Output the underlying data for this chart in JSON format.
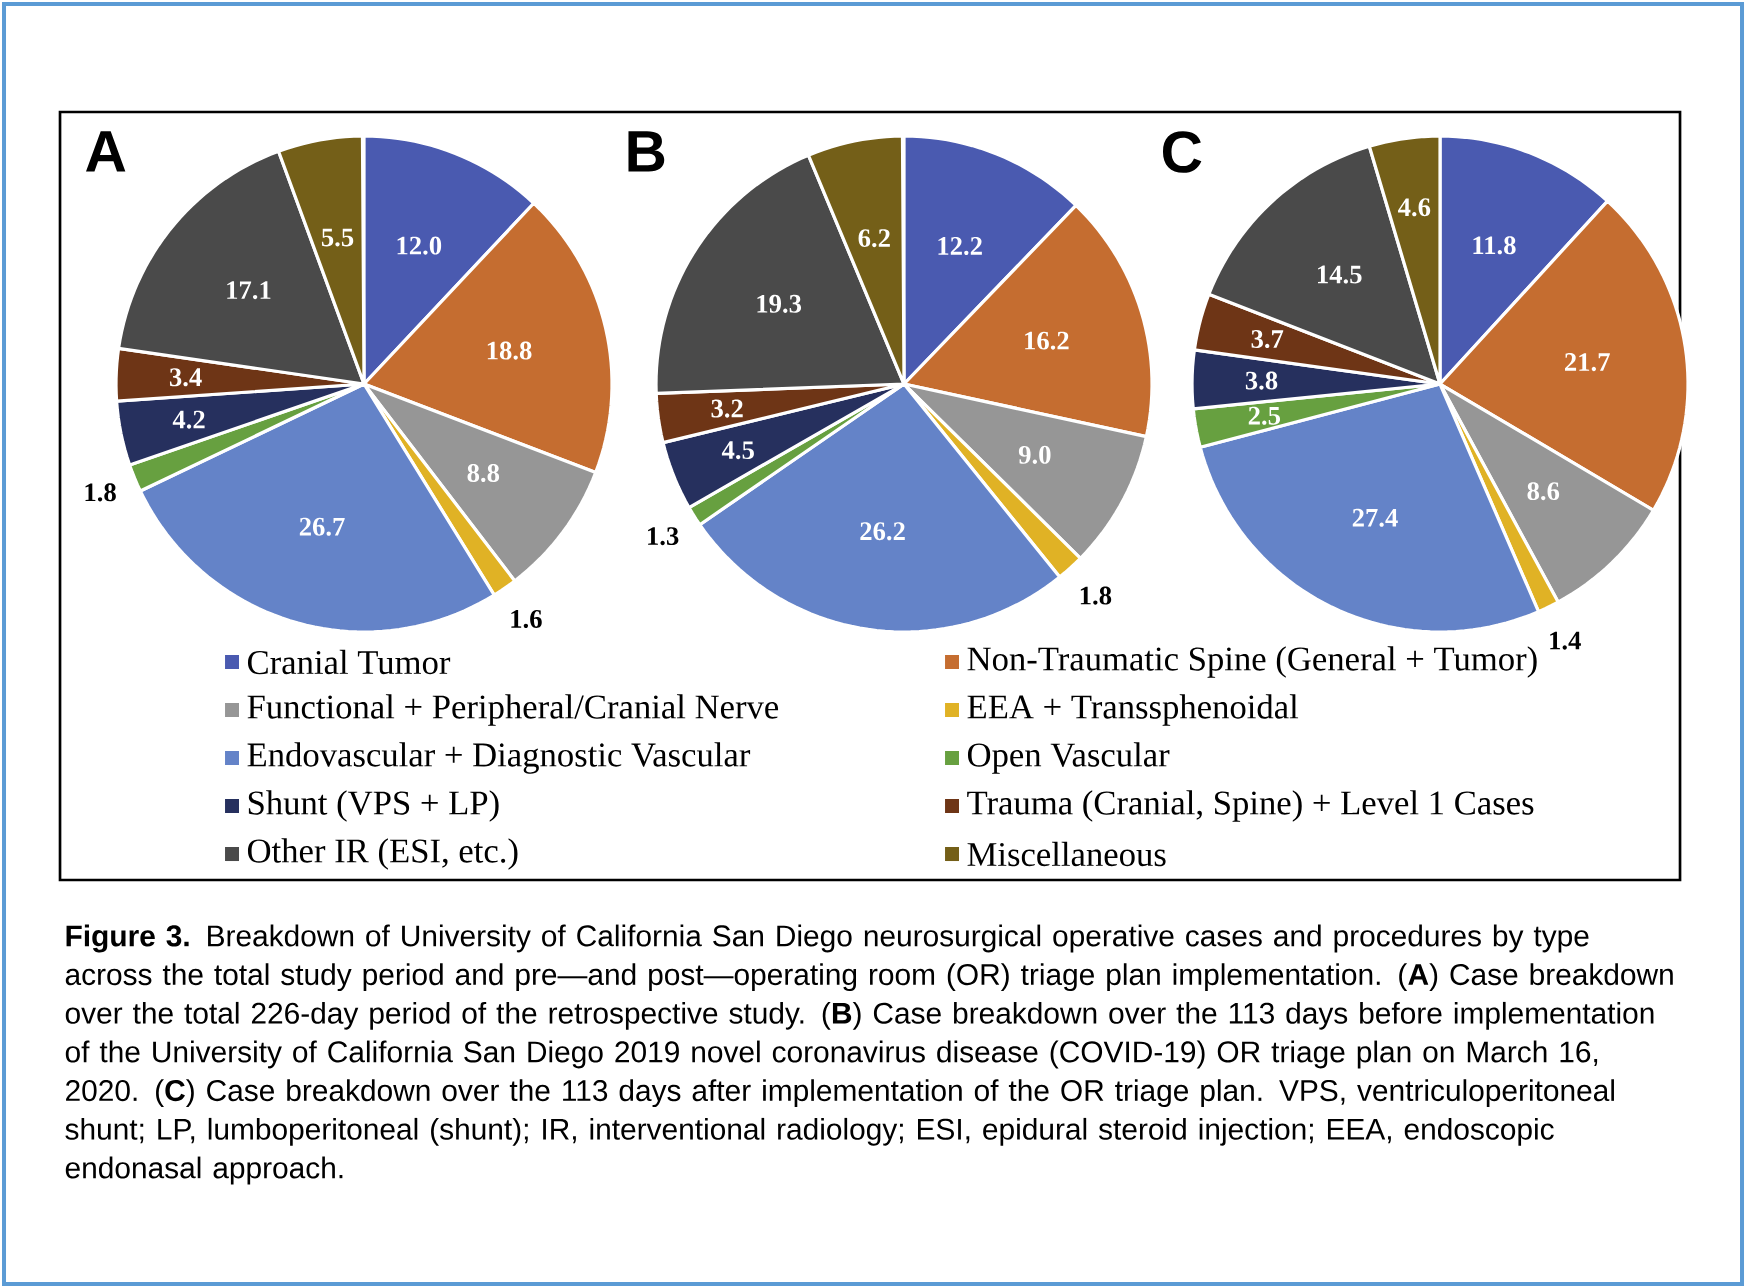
{
  "chart_data": [
    {
      "type": "pie",
      "title": "A",
      "legend": "bottom",
      "value_labels": [
        "12.0",
        "18.8",
        "8.8",
        "1.6",
        "26.7",
        "1.8",
        "4.2",
        "3.4",
        "17.1",
        "5.5"
      ],
      "categories": [
        "Cranial Tumor",
        "Non-Traumatic Spine (General + Tumor)",
        "Functional + Peripheral/Cranial Nerve",
        "EEA + Transsphenoidal",
        "Endovascular + Diagnostic Vascular",
        "Open Vascular",
        "Shunt (VPS + LP)",
        "Trauma (Cranial, Spine) + Level 1 Cases",
        "Other IR (ESI, etc.)",
        "Miscellaneous"
      ],
      "values": [
        12.0,
        18.8,
        8.8,
        1.6,
        26.7,
        1.8,
        4.2,
        3.4,
        17.1,
        5.5
      ],
      "colors": [
        "#4a5ab0",
        "#c56d30",
        "#969696",
        "#e0b225",
        "#6483c8",
        "#67a040",
        "#26305e",
        "#6e3516",
        "#4a4a4a",
        "#745f18"
      ],
      "annotations": [
        "**Figure 3.** Breakdown of University of California San Diego neurosurgical operative cases and procedures by type across the total study period and pre—and post—operating room (OR) triage plan implementation. (**A**) Case breakdown over the total 226-day period of the retrospective study. (**B**) Case breakdown over the 113 days before implementation of the University of California San Diego 2019 novel coronavirus disease (COVID-19) OR triage plan on March 16, 2020. (**C**) Case breakdown over the 113 days after implementation of the OR triage plan. VPS, ventriculoperitoneal shunt; LP, lumboperitoneal (shunt); IR, interventional radiology; ESI, epidural steroid injection; EEA, endoscopic endonasal approach."
      ]
    },
    {
      "type": "pie",
      "title": "B",
      "value_labels": [
        "12.2",
        "16.2",
        "9.0",
        "1.8",
        "26.2",
        "1.3",
        "4.5",
        "3.2",
        "19.3",
        "6.2"
      ],
      "categories": [
        null,
        null,
        null,
        null,
        null,
        null,
        null,
        null,
        null,
        null
      ],
      "values": [
        12.2,
        16.2,
        9.0,
        1.8,
        26.2,
        1.3,
        4.5,
        3.2,
        19.3,
        6.2
      ],
      "colors": [
        "#4a5ab0",
        "#c56d30",
        "#969696",
        "#e0b225",
        "#6483c8",
        "#67a040",
        "#26305e",
        "#6e3516",
        "#4a4a4a",
        "#745f18"
      ]
    },
    {
      "type": "pie",
      "title": "C",
      "value_labels": [
        "11.8",
        "21.7",
        "8.6",
        "1.4",
        "27.4",
        "2.5",
        "3.8",
        "3.7",
        "14.5",
        "4.6"
      ],
      "categories": [
        null,
        null,
        null,
        null,
        null,
        null,
        null,
        null,
        null,
        null
      ],
      "values": [
        11.8,
        21.7,
        8.6,
        1.4,
        27.4,
        2.5,
        3.8,
        3.7,
        14.5,
        4.6
      ],
      "colors": [
        "#4a5ab0",
        "#c56d30",
        "#969696",
        "#e0b225",
        "#6483c8",
        "#67a040",
        "#26305e",
        "#6e3516",
        "#4a4a4a",
        "#745f18"
      ]
    }
  ]
}
